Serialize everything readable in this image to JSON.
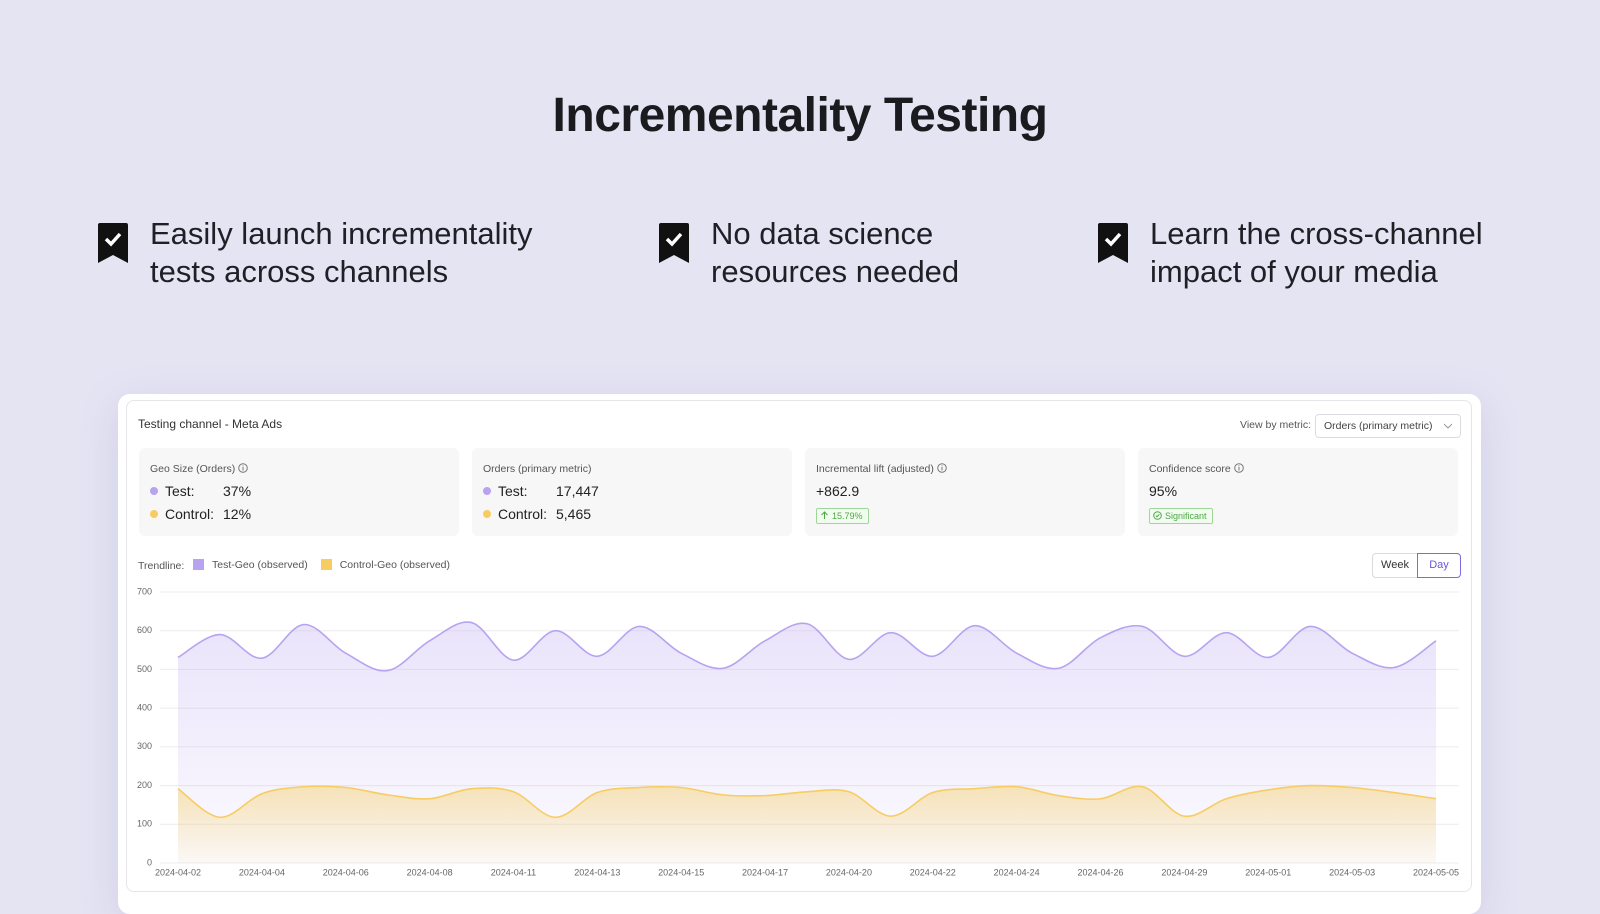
{
  "header": {
    "title": "Incrementality Testing"
  },
  "features": [
    {
      "lines": [
        "Easily launch incrementality",
        "tests across channels"
      ]
    },
    {
      "lines": [
        "No data science",
        "resources needed"
      ]
    },
    {
      "lines": [
        "Learn the cross-channel",
        "impact of your media"
      ]
    }
  ],
  "panel": {
    "title": "Testing channel - Meta Ads",
    "metric_label": "View by metric:",
    "metric_select": "Orders (primary metric)",
    "metrics": [
      {
        "label": "Geo Size (Orders)",
        "rows": [
          {
            "name": "Test:",
            "value": "37%"
          },
          {
            "name": "Control:",
            "value": "12%"
          }
        ]
      },
      {
        "label": "Orders (primary metric)",
        "rows": [
          {
            "name": "Test:",
            "value": "17,447"
          },
          {
            "name": "Control:",
            "value": "5,465"
          }
        ]
      },
      {
        "label": "Incremental lift (adjusted)",
        "value": "+862.9",
        "badge": "15.79%"
      },
      {
        "label": "Confidence score",
        "value": "95%",
        "badge": "Significant"
      }
    ],
    "trend_label": "Trendline:",
    "toggle": [
      "Week",
      "Day"
    ]
  },
  "chart_data": {
    "type": "area",
    "categories": [
      "2024-04-02",
      null,
      "2024-04-04",
      null,
      "2024-04-06",
      null,
      "2024-04-08",
      null,
      "2024-04-11",
      null,
      "2024-04-13",
      null,
      "2024-04-15",
      null,
      "2024-04-17",
      null,
      "2024-04-20",
      null,
      "2024-04-22",
      null,
      "2024-04-24",
      null,
      "2024-04-26",
      null,
      "2024-04-29",
      null,
      "2024-05-01",
      null,
      "2024-05-03",
      null,
      "2024-05-05"
    ],
    "series": [
      {
        "name": "Test-Geo (observed)",
        "color": "#b7a3f0",
        "values": [
          531,
          590,
          529,
          616,
          542,
          497,
          574,
          621,
          524,
          600,
          534,
          611,
          542,
          503,
          574,
          618,
          526,
          595,
          534,
          613,
          542,
          503,
          582,
          611,
          534,
          595,
          531,
          611,
          542,
          505,
          574
        ]
      },
      {
        "name": "Control-Geo (observed)",
        "color": "#f7cd62",
        "values": [
          192,
          118,
          179,
          197,
          195,
          176,
          166,
          192,
          184,
          118,
          182,
          195,
          195,
          176,
          174,
          184,
          184,
          121,
          182,
          192,
          197,
          174,
          166,
          197,
          121,
          166,
          189,
          200,
          195,
          182,
          166
        ]
      }
    ],
    "ylim": [
      0,
      700
    ],
    "yticks": [
      0,
      100,
      200,
      300,
      400,
      500,
      600,
      700
    ],
    "grid": true
  }
}
